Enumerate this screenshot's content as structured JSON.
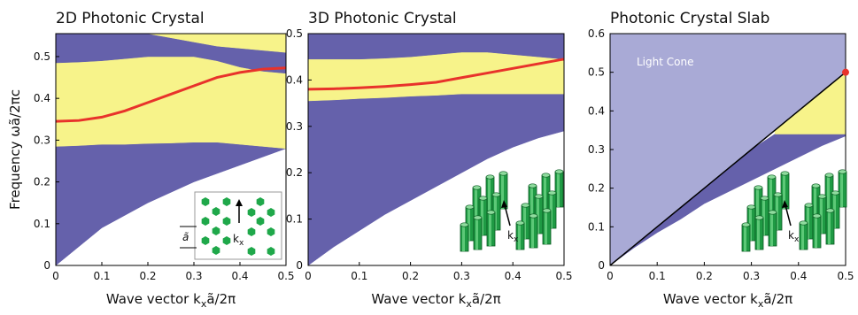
{
  "chart_data": [
    {
      "type": "band",
      "title": "2D Photonic Crystal",
      "ylabel": "Frequency  ωã/2πc",
      "xlabel": "Wave vector  k",
      "xlabel_sub": "x",
      "xlabel_end": "ã/2π",
      "x": [
        0,
        0.05,
        0.1,
        0.15,
        0.2,
        0.25,
        0.3,
        0.35,
        0.4,
        0.45,
        0.5
      ],
      "xlim": [
        0,
        0.5
      ],
      "ylim": [
        0,
        0.555
      ],
      "xticks": [
        0,
        0.1,
        0.2,
        0.3,
        0.4,
        0.5
      ],
      "yticks": [
        0,
        0.1,
        0.2,
        0.3,
        0.4,
        0.5
      ],
      "bands": [
        {
          "color": "#6561ab",
          "lower": [
            0,
            0.045,
            0.09,
            0.12,
            0.15,
            0.175,
            0.2,
            0.22,
            0.24,
            0.26,
            0.28
          ],
          "upper": [
            0.285,
            0.287,
            0.29,
            0.29,
            0.292,
            0.293,
            0.295,
            0.295,
            0.29,
            0.285,
            0.28
          ]
        },
        {
          "color": "#f7f38a",
          "lower": [
            0.285,
            0.287,
            0.29,
            0.29,
            0.292,
            0.293,
            0.295,
            0.295,
            0.29,
            0.285,
            0.28
          ],
          "upper": [
            0.485,
            0.487,
            0.49,
            0.495,
            0.5,
            0.5,
            0.5,
            0.49,
            0.475,
            0.465,
            0.46
          ]
        },
        {
          "color": "#6561ab",
          "lower": [
            0.485,
            0.487,
            0.49,
            0.495,
            0.5,
            0.5,
            0.5,
            0.49,
            0.475,
            0.465,
            0.46
          ],
          "upper": [
            0.555,
            0.555,
            0.555,
            0.555,
            0.555,
            0.545,
            0.535,
            0.525,
            0.52,
            0.515,
            0.51
          ]
        },
        {
          "color": "#f7f38a",
          "lower": [
            0.555,
            0.555,
            0.555,
            0.555,
            0.555,
            0.545,
            0.535,
            0.525,
            0.52,
            0.515,
            0.51
          ],
          "upper": [
            0.555,
            0.555,
            0.555,
            0.555,
            0.555,
            0.555,
            0.555,
            0.555,
            0.555,
            0.555,
            0.555
          ]
        }
      ],
      "lines": [
        {
          "color": "#e8322b",
          "values": [
            0.345,
            0.347,
            0.355,
            0.37,
            0.39,
            0.41,
            0.43,
            0.45,
            0.462,
            0.47,
            0.473
          ]
        }
      ],
      "inset": {
        "label": "k",
        "label_sub": "x",
        "lattice": "ã"
      }
    },
    {
      "type": "band",
      "title": "3D Photonic Crystal",
      "xlabel": "Wave vector  k",
      "xlabel_sub": "x",
      "xlabel_end": "ã/2π",
      "x": [
        0,
        0.05,
        0.1,
        0.15,
        0.2,
        0.25,
        0.3,
        0.35,
        0.4,
        0.45,
        0.5
      ],
      "xlim": [
        0,
        0.5
      ],
      "ylim": [
        0,
        0.5
      ],
      "xticks": [
        0,
        0.1,
        0.2,
        0.3,
        0.4,
        0.5
      ],
      "yticks": [
        0,
        0.1,
        0.2,
        0.3,
        0.4,
        0.5
      ],
      "bands": [
        {
          "color": "#6561ab",
          "lower": [
            0,
            0.04,
            0.075,
            0.11,
            0.14,
            0.17,
            0.2,
            0.23,
            0.255,
            0.275,
            0.29
          ],
          "upper": [
            0.355,
            0.357,
            0.36,
            0.362,
            0.365,
            0.367,
            0.37,
            0.37,
            0.37,
            0.37,
            0.37
          ]
        },
        {
          "color": "#f7f38a",
          "lower": [
            0.355,
            0.357,
            0.36,
            0.362,
            0.365,
            0.367,
            0.37,
            0.37,
            0.37,
            0.37,
            0.37
          ],
          "upper": [
            0.445,
            0.445,
            0.445,
            0.447,
            0.45,
            0.455,
            0.46,
            0.46,
            0.455,
            0.45,
            0.445
          ]
        },
        {
          "color": "#6561ab",
          "lower": [
            0.445,
            0.445,
            0.445,
            0.447,
            0.45,
            0.455,
            0.46,
            0.46,
            0.455,
            0.45,
            0.445
          ],
          "upper": [
            0.5,
            0.5,
            0.5,
            0.5,
            0.5,
            0.5,
            0.5,
            0.5,
            0.5,
            0.5,
            0.5
          ]
        }
      ],
      "lines": [
        {
          "color": "#e8322b",
          "values": [
            0.38,
            0.381,
            0.383,
            0.386,
            0.39,
            0.395,
            0.405,
            0.415,
            0.425,
            0.435,
            0.445
          ]
        }
      ],
      "inset": {
        "label": "k",
        "label_sub": "x"
      }
    },
    {
      "type": "band",
      "title": "Photonic Crystal Slab",
      "xlabel": "Wave vector  k",
      "xlabel_sub": "x",
      "xlabel_end": "ã/2π",
      "annotation": "Light Cone",
      "x": [
        0,
        0.05,
        0.1,
        0.15,
        0.2,
        0.25,
        0.3,
        0.35,
        0.4,
        0.45,
        0.5
      ],
      "xlim": [
        0,
        0.5
      ],
      "ylim": [
        0,
        0.6
      ],
      "xticks": [
        0,
        0.1,
        0.2,
        0.3,
        0.4,
        0.5
      ],
      "yticks": [
        0,
        0.1,
        0.2,
        0.3,
        0.4,
        0.5,
        0.6
      ],
      "bands": [
        {
          "color": "#a9aad6",
          "lower": [
            0,
            0.05,
            0.1,
            0.15,
            0.2,
            0.25,
            0.3,
            0.35,
            0.4,
            0.45,
            0.5
          ],
          "upper": [
            0.6,
            0.6,
            0.6,
            0.6,
            0.6,
            0.6,
            0.6,
            0.6,
            0.6,
            0.6,
            0.6
          ]
        },
        {
          "color": "#6561ab",
          "lower": [
            0,
            0.045,
            0.085,
            0.12,
            0.16,
            0.19,
            0.22,
            0.25,
            0.28,
            0.31,
            0.335
          ],
          "upper": [
            0,
            0.05,
            0.1,
            0.15,
            0.2,
            0.25,
            0.3,
            0.34,
            0.34,
            0.34,
            0.34
          ]
        },
        {
          "color": "#f7f38a",
          "lower": [
            null,
            null,
            null,
            null,
            null,
            null,
            null,
            0.34,
            0.34,
            0.34,
            0.34
          ],
          "upper": [
            null,
            null,
            null,
            null,
            null,
            null,
            null,
            0.35,
            0.4,
            0.45,
            0.5
          ]
        }
      ],
      "lines": [
        {
          "color": "#000000",
          "values": [
            0,
            0.05,
            0.1,
            0.15,
            0.2,
            0.25,
            0.3,
            0.35,
            0.4,
            0.45,
            0.5
          ]
        }
      ],
      "markers": [
        {
          "color": "#e8322b",
          "x": 0.5,
          "y": 0.5
        }
      ],
      "inset": {
        "label": "k",
        "label_sub": "x"
      }
    }
  ]
}
